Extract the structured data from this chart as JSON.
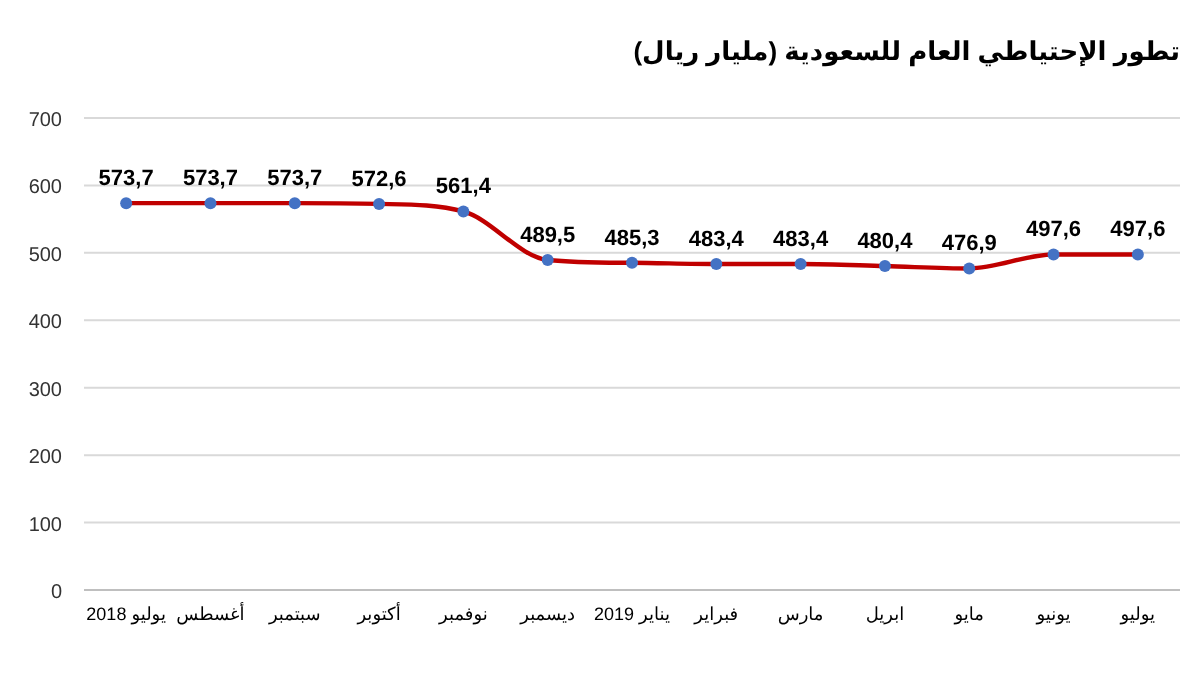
{
  "chart_data": {
    "type": "line",
    "title": "تطور الإحتياطي العام للسعودية (مليار ريال)",
    "categories": [
      "يوليو 2018",
      "أغسطس",
      "سبتمبر",
      "أكتوبر",
      "نوفمبر",
      "ديسمبر",
      "يناير 2019",
      "فبراير",
      "مارس",
      "ابريل",
      "مايو",
      "يونيو",
      "يوليو"
    ],
    "series": [
      {
        "color": "#c00000",
        "values": [
          573.7,
          573.7,
          573.7,
          572.6,
          561.4,
          489.5,
          485.3,
          483.4,
          483.4,
          480.4,
          476.9,
          497.6,
          497.6
        ],
        "value_labels": [
          "573,7",
          "573,7",
          "573,7",
          "572,6",
          "561,4",
          "489,5",
          "485,3",
          "483,4",
          "483,4",
          "480,4",
          "476,9",
          "497,6",
          "497,6"
        ]
      }
    ],
    "marker": "circle",
    "ylim": [
      0,
      700
    ],
    "yticks": [
      0,
      100,
      200,
      300,
      400,
      500,
      600,
      700
    ],
    "grid": "y"
  }
}
